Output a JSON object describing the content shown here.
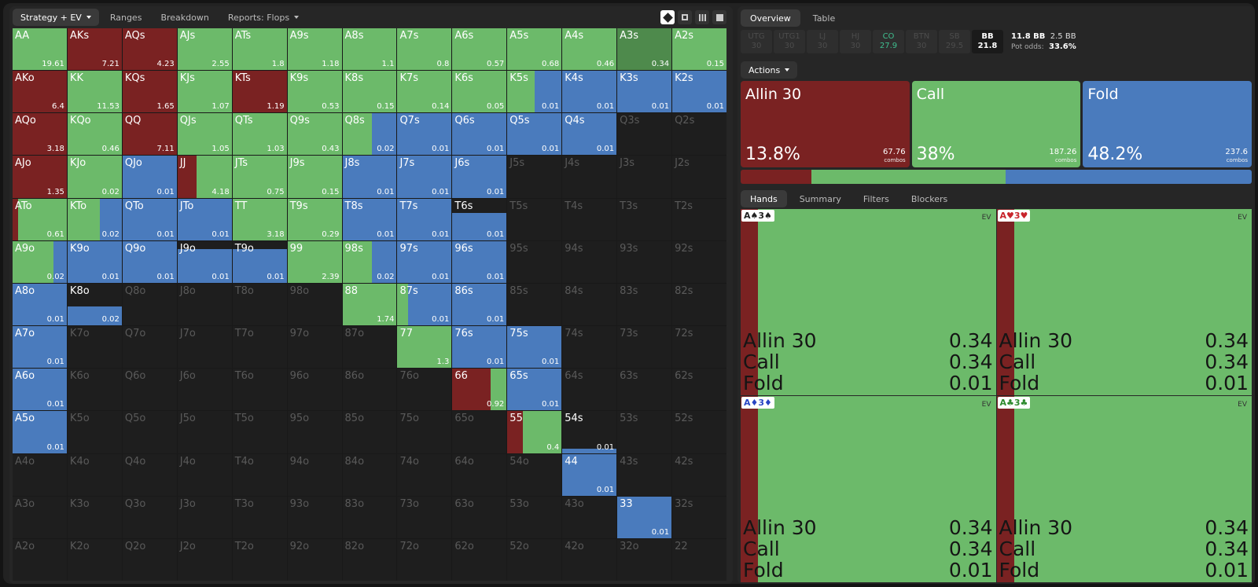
{
  "toolbar": {
    "tabs": [
      "Strategy + EV",
      "Ranges",
      "Breakdown",
      "Reports: Flops"
    ],
    "active_tab": "Strategy + EV",
    "view_icons": [
      "contrast-icon",
      "grid-small-icon",
      "grid-dots-icon",
      "square-icon"
    ]
  },
  "colors": {
    "allin": "#7a2222",
    "call": "#6cba6a",
    "fold": "#4a7bbd",
    "empty": "#1e1e1e"
  },
  "matrix": [
    [
      [
        "AA",
        0,
        1,
        0,
        "19.61",
        0
      ],
      [
        "AKs",
        1,
        0,
        0,
        "7.21",
        0
      ],
      [
        "AQs",
        1,
        0,
        0,
        "4.23",
        0
      ],
      [
        "AJs",
        0,
        1,
        0,
        "2.55",
        0
      ],
      [
        "ATs",
        0,
        1,
        0,
        "1.8",
        0
      ],
      [
        "A9s",
        0,
        1,
        0,
        "1.18",
        0
      ],
      [
        "A8s",
        0,
        1,
        0,
        "1.1",
        0
      ],
      [
        "A7s",
        0,
        1,
        0,
        "0.8",
        0
      ],
      [
        "A6s",
        0,
        1,
        0,
        "0.57",
        0
      ],
      [
        "A5s",
        0,
        1,
        0,
        "0.68",
        0
      ],
      [
        "A4s",
        0,
        1,
        0,
        "0.46",
        0
      ],
      [
        "A3s",
        0,
        1,
        0,
        "0.34",
        1
      ],
      [
        "A2s",
        0,
        1,
        0,
        "0.15",
        0
      ]
    ],
    [
      [
        "AKo",
        1,
        0,
        0,
        "6.4",
        0
      ],
      [
        "KK",
        0,
        1,
        0,
        "11.53",
        0
      ],
      [
        "KQs",
        1,
        0,
        0,
        "1.65",
        0
      ],
      [
        "KJs",
        0,
        1,
        0,
        "1.07",
        0
      ],
      [
        "KTs",
        1,
        0,
        0,
        "1.19",
        0
      ],
      [
        "K9s",
        0,
        1,
        0,
        "0.53",
        0
      ],
      [
        "K8s",
        0,
        1,
        0,
        "0.15",
        0
      ],
      [
        "K7s",
        0,
        1,
        0,
        "0.14",
        0
      ],
      [
        "K6s",
        0,
        1,
        0,
        "0.05",
        0
      ],
      [
        "K5s",
        0,
        0.5,
        0.5,
        "0.01",
        0
      ],
      [
        "K4s",
        0,
        0,
        1,
        "0.01",
        0
      ],
      [
        "K3s",
        0,
        0,
        1,
        "0.01",
        0
      ],
      [
        "K2s",
        0,
        0,
        1,
        "0.01",
        0
      ]
    ],
    [
      [
        "AQo",
        1,
        0,
        0,
        "3.18",
        0
      ],
      [
        "KQo",
        0,
        1,
        0,
        "0.46",
        0
      ],
      [
        "QQ",
        1,
        0,
        0,
        "7.11",
        0
      ],
      [
        "QJs",
        0,
        1,
        0,
        "1.05",
        0
      ],
      [
        "QTs",
        0,
        1,
        0,
        "1.03",
        0
      ],
      [
        "Q9s",
        0,
        1,
        0,
        "0.43",
        0
      ],
      [
        "Q8s",
        0,
        0.55,
        0.45,
        "0.02",
        0
      ],
      [
        "Q7s",
        0,
        0,
        1,
        "0.01",
        0
      ],
      [
        "Q6s",
        0,
        0,
        1,
        "0.01",
        0
      ],
      [
        "Q5s",
        0,
        0,
        1,
        "0.01",
        0
      ],
      [
        "Q4s",
        0,
        0,
        1,
        "0.01",
        0
      ],
      [
        "Q3s",
        0,
        0,
        0,
        "",
        0
      ],
      [
        "Q2s",
        0,
        0,
        0,
        "",
        0
      ]
    ],
    [
      [
        "AJo",
        1,
        0,
        0,
        "1.35",
        0
      ],
      [
        "KJo",
        0,
        1,
        0,
        "0.02",
        0
      ],
      [
        "QJo",
        0,
        0,
        1,
        "0.01",
        0
      ],
      [
        "JJ",
        0.35,
        0.65,
        0,
        "4.18",
        0
      ],
      [
        "JTs",
        0,
        1,
        0,
        "0.75",
        0
      ],
      [
        "J9s",
        0,
        1,
        0,
        "0.15",
        0
      ],
      [
        "J8s",
        0,
        0,
        1,
        "0.01",
        0
      ],
      [
        "J7s",
        0,
        0,
        1,
        "0.01",
        0
      ],
      [
        "J6s",
        0,
        0,
        1,
        "0.01",
        0
      ],
      [
        "J5s",
        0,
        0,
        0,
        "",
        0
      ],
      [
        "J4s",
        0,
        0,
        0,
        "",
        0
      ],
      [
        "J3s",
        0,
        0,
        0,
        "",
        0
      ],
      [
        "J2s",
        0,
        0,
        0,
        "",
        0
      ]
    ],
    [
      [
        "ATo",
        0.1,
        0.9,
        0,
        "0.61",
        0
      ],
      [
        "KTo",
        0,
        0.6,
        0.4,
        "0.02",
        0
      ],
      [
        "QTo",
        0,
        0,
        1,
        "0.01",
        0
      ],
      [
        "JTo",
        0,
        0,
        1,
        "0.01",
        0
      ],
      [
        "TT",
        0,
        1,
        0,
        "3.18",
        0
      ],
      [
        "T9s",
        0,
        1,
        0,
        "0.29",
        0
      ],
      [
        "T8s",
        0,
        0,
        1,
        "0.01",
        0
      ],
      [
        "T7s",
        0,
        0,
        1,
        "0.01",
        0
      ],
      [
        "T6s",
        0,
        0,
        0.65,
        "0.01",
        0
      ],
      [
        "T5s",
        0,
        0,
        0,
        "",
        0
      ],
      [
        "T4s",
        0,
        0,
        0,
        "",
        0
      ],
      [
        "T3s",
        0,
        0,
        0,
        "",
        0
      ],
      [
        "T2s",
        0,
        0,
        0,
        "",
        0
      ]
    ],
    [
      [
        "A9o",
        0,
        0.75,
        0.25,
        "0.02",
        0
      ],
      [
        "K9o",
        0,
        0,
        1,
        "0.01",
        0
      ],
      [
        "Q9o",
        0,
        0,
        1,
        "0.01",
        0
      ],
      [
        "J9o",
        0,
        0,
        0.8,
        "0.01",
        0
      ],
      [
        "T9o",
        0,
        0,
        0.8,
        "0.01",
        0
      ],
      [
        "99",
        0,
        1,
        0,
        "2.39",
        0
      ],
      [
        "98s",
        0,
        0.55,
        0.45,
        "0.02",
        0
      ],
      [
        "97s",
        0,
        0,
        1,
        "0.01",
        0
      ],
      [
        "96s",
        0,
        0,
        1,
        "0.01",
        0
      ],
      [
        "95s",
        0,
        0,
        0,
        "",
        0
      ],
      [
        "94s",
        0,
        0,
        0,
        "",
        0
      ],
      [
        "93s",
        0,
        0,
        0,
        "",
        0
      ],
      [
        "92s",
        0,
        0,
        0,
        "",
        0
      ]
    ],
    [
      [
        "A8o",
        0,
        0,
        1,
        "0.01",
        0
      ],
      [
        "K8o",
        0,
        0,
        0.45,
        "0.02",
        0
      ],
      [
        "Q8o",
        0,
        0,
        0,
        "",
        0
      ],
      [
        "J8o",
        0,
        0,
        0,
        "",
        0
      ],
      [
        "T8o",
        0,
        0,
        0,
        "",
        0
      ],
      [
        "98o",
        0,
        0,
        0,
        "",
        0
      ],
      [
        "88",
        0,
        1,
        0,
        "1.74",
        0
      ],
      [
        "87s",
        0,
        0.2,
        0.8,
        "0.01",
        0
      ],
      [
        "86s",
        0,
        0,
        1,
        "0.01",
        0
      ],
      [
        "85s",
        0,
        0,
        0,
        "",
        0
      ],
      [
        "84s",
        0,
        0,
        0,
        "",
        0
      ],
      [
        "83s",
        0,
        0,
        0,
        "",
        0
      ],
      [
        "82s",
        0,
        0,
        0,
        "",
        0
      ]
    ],
    [
      [
        "A7o",
        0,
        0,
        1,
        "0.01",
        0
      ],
      [
        "K7o",
        0,
        0,
        0,
        "",
        0
      ],
      [
        "Q7o",
        0,
        0,
        0,
        "",
        0
      ],
      [
        "J7o",
        0,
        0,
        0,
        "",
        0
      ],
      [
        "T7o",
        0,
        0,
        0,
        "",
        0
      ],
      [
        "97o",
        0,
        0,
        0,
        "",
        0
      ],
      [
        "87o",
        0,
        0,
        0,
        "",
        0
      ],
      [
        "77",
        0,
        1,
        0,
        "1.3",
        0
      ],
      [
        "76s",
        0,
        0,
        1,
        "0.01",
        0
      ],
      [
        "75s",
        0,
        0,
        1,
        "0.01",
        0
      ],
      [
        "74s",
        0,
        0,
        0,
        "",
        0
      ],
      [
        "73s",
        0,
        0,
        0,
        "",
        0
      ],
      [
        "72s",
        0,
        0,
        0,
        "",
        0
      ]
    ],
    [
      [
        "A6o",
        0,
        0,
        1,
        "0.01",
        0
      ],
      [
        "K6o",
        0,
        0,
        0,
        "",
        0
      ],
      [
        "Q6o",
        0,
        0,
        0,
        "",
        0
      ],
      [
        "J6o",
        0,
        0,
        0,
        "",
        0
      ],
      [
        "T6o",
        0,
        0,
        0,
        "",
        0
      ],
      [
        "96o",
        0,
        0,
        0,
        "",
        0
      ],
      [
        "86o",
        0,
        0,
        0,
        "",
        0
      ],
      [
        "76o",
        0,
        0,
        0,
        "",
        0
      ],
      [
        "66",
        0.7,
        0.3,
        0,
        "0.92",
        0
      ],
      [
        "65s",
        0,
        0,
        1,
        "0.01",
        0
      ],
      [
        "64s",
        0,
        0,
        0,
        "",
        0
      ],
      [
        "63s",
        0,
        0,
        0,
        "",
        0
      ],
      [
        "62s",
        0,
        0,
        0,
        "",
        0
      ]
    ],
    [
      [
        "A5o",
        0,
        0,
        1,
        "0.01",
        0
      ],
      [
        "K5o",
        0,
        0,
        0,
        "",
        0
      ],
      [
        "Q5o",
        0,
        0,
        0,
        "",
        0
      ],
      [
        "J5o",
        0,
        0,
        0,
        "",
        0
      ],
      [
        "T5o",
        0,
        0,
        0,
        "",
        0
      ],
      [
        "95o",
        0,
        0,
        0,
        "",
        0
      ],
      [
        "85o",
        0,
        0,
        0,
        "",
        0
      ],
      [
        "75o",
        0,
        0,
        0,
        "",
        0
      ],
      [
        "65o",
        0,
        0,
        0,
        "",
        0
      ],
      [
        "55",
        0.28,
        0.72,
        0,
        "0.4",
        0
      ],
      [
        "54s",
        0,
        0,
        0.1,
        "0.01",
        0
      ],
      [
        "53s",
        0,
        0,
        0,
        "",
        0
      ],
      [
        "52s",
        0,
        0,
        0,
        "",
        0
      ]
    ],
    [
      [
        "A4o",
        0,
        0,
        0,
        "",
        0
      ],
      [
        "K4o",
        0,
        0,
        0,
        "",
        0
      ],
      [
        "Q4o",
        0,
        0,
        0,
        "",
        0
      ],
      [
        "J4o",
        0,
        0,
        0,
        "",
        0
      ],
      [
        "T4o",
        0,
        0,
        0,
        "",
        0
      ],
      [
        "94o",
        0,
        0,
        0,
        "",
        0
      ],
      [
        "84o",
        0,
        0,
        0,
        "",
        0
      ],
      [
        "74o",
        0,
        0,
        0,
        "",
        0
      ],
      [
        "64o",
        0,
        0,
        0,
        "",
        0
      ],
      [
        "54o",
        0,
        0,
        0,
        "",
        0
      ],
      [
        "44",
        0,
        0,
        1,
        "0.01",
        0
      ],
      [
        "43s",
        0,
        0,
        0,
        "",
        0
      ],
      [
        "42s",
        0,
        0,
        0,
        "",
        0
      ]
    ],
    [
      [
        "A3o",
        0,
        0,
        0,
        "",
        0
      ],
      [
        "K3o",
        0,
        0,
        0,
        "",
        0
      ],
      [
        "Q3o",
        0,
        0,
        0,
        "",
        0
      ],
      [
        "J3o",
        0,
        0,
        0,
        "",
        0
      ],
      [
        "T3o",
        0,
        0,
        0,
        "",
        0
      ],
      [
        "93o",
        0,
        0,
        0,
        "",
        0
      ],
      [
        "83o",
        0,
        0,
        0,
        "",
        0
      ],
      [
        "73o",
        0,
        0,
        0,
        "",
        0
      ],
      [
        "63o",
        0,
        0,
        0,
        "",
        0
      ],
      [
        "53o",
        0,
        0,
        0,
        "",
        0
      ],
      [
        "43o",
        0,
        0,
        0,
        "",
        0
      ],
      [
        "33",
        0,
        0,
        1,
        "0.01",
        0
      ],
      [
        "32s",
        0,
        0,
        0,
        "",
        0
      ]
    ],
    [
      [
        "A2o",
        0,
        0,
        0,
        "",
        0
      ],
      [
        "K2o",
        0,
        0,
        0,
        "",
        0
      ],
      [
        "Q2o",
        0,
        0,
        0,
        "",
        0
      ],
      [
        "J2o",
        0,
        0,
        0,
        "",
        0
      ],
      [
        "T2o",
        0,
        0,
        0,
        "",
        0
      ],
      [
        "92o",
        0,
        0,
        0,
        "",
        0
      ],
      [
        "82o",
        0,
        0,
        0,
        "",
        0
      ],
      [
        "72o",
        0,
        0,
        0,
        "",
        0
      ],
      [
        "62o",
        0,
        0,
        0,
        "",
        0
      ],
      [
        "52o",
        0,
        0,
        0,
        "",
        0
      ],
      [
        "42o",
        0,
        0,
        0,
        "",
        0
      ],
      [
        "32o",
        0,
        0,
        0,
        "",
        0
      ],
      [
        "22",
        0,
        0,
        0,
        "",
        0
      ]
    ]
  ],
  "right": {
    "tabs": [
      "Overview",
      "Table"
    ],
    "positions": [
      {
        "name": "UTG",
        "stack": "30"
      },
      {
        "name": "UTG1",
        "stack": "30"
      },
      {
        "name": "LJ",
        "stack": "30"
      },
      {
        "name": "HJ",
        "stack": "30"
      },
      {
        "name": "CO",
        "stack": "27.9"
      },
      {
        "name": "BTN",
        "stack": "30"
      },
      {
        "name": "SB",
        "stack": "29.5"
      },
      {
        "name": "BB",
        "stack": "21.8"
      }
    ],
    "pot": {
      "bb": "11.8 BB",
      "call": "2.5 BB",
      "odds_label": "Pot odds:",
      "odds": "33.6%"
    },
    "actions_label": "Actions",
    "actions": [
      {
        "name": "Allin 30",
        "pct": "13.8%",
        "combos": "67.76",
        "combos_label": "combos",
        "freq": 0.138,
        "color": "#7a2222"
      },
      {
        "name": "Call",
        "pct": "38%",
        "combos": "187.26",
        "combos_label": "combos",
        "freq": 0.38,
        "color": "#6cba6a"
      },
      {
        "name": "Fold",
        "pct": "48.2%",
        "combos": "237.6",
        "combos_label": "combos",
        "freq": 0.482,
        "color": "#4a7bbd"
      }
    ],
    "hand_tabs": [
      "Hands",
      "Summary",
      "Filters",
      "Blockers"
    ],
    "hands": [
      {
        "r1": "A",
        "s1": "♠",
        "r2": "3",
        "s2": "♠",
        "suit_color": "#222222",
        "ev_label": "EV",
        "rows": [
          [
            "Allin 30",
            "0.34"
          ],
          [
            "Call",
            "0.34"
          ],
          [
            "Fold",
            "0.01"
          ]
        ]
      },
      {
        "r1": "A",
        "s1": "♥",
        "r2": "3",
        "s2": "♥",
        "suit_color": "#c8252c",
        "ev_label": "EV",
        "rows": [
          [
            "Allin 30",
            "0.34"
          ],
          [
            "Call",
            "0.34"
          ],
          [
            "Fold",
            "0.01"
          ]
        ]
      },
      {
        "r1": "A",
        "s1": "♦",
        "r2": "3",
        "s2": "♦",
        "suit_color": "#2945c4",
        "ev_label": "EV",
        "rows": [
          [
            "Allin 30",
            "0.34"
          ],
          [
            "Call",
            "0.34"
          ],
          [
            "Fold",
            "0.01"
          ]
        ]
      },
      {
        "r1": "A",
        "s1": "♣",
        "r2": "3",
        "s2": "♣",
        "suit_color": "#2d8a2d",
        "ev_label": "EV",
        "rows": [
          [
            "Allin 30",
            "0.34"
          ],
          [
            "Call",
            "0.34"
          ],
          [
            "Fold",
            "0.01"
          ]
        ]
      }
    ]
  }
}
